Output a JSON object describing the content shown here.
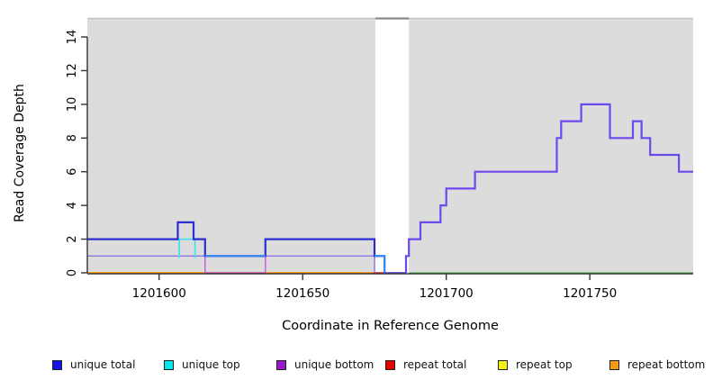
{
  "figure": {
    "title": "",
    "xlabel": "Coordinate in Reference Genome",
    "ylabel": "Read Coverage Depth"
  },
  "chart_data": {
    "type": "line",
    "subtype": "step-coverage-plot",
    "title": "",
    "xlabel": "Coordinate in Reference Genome",
    "ylabel": "Read Coverage Depth",
    "xlim": [
      1201575,
      1201786
    ],
    "ylim": [
      0,
      15.2
    ],
    "x_ticks": [
      "1201600",
      "1201650",
      "1201700",
      "1201750"
    ],
    "x_tick_values": [
      1201600,
      1201650,
      1201700,
      1201750
    ],
    "y_ticks": [
      "0",
      "2",
      "4",
      "6",
      "8",
      "10",
      "12",
      "14"
    ],
    "y_tick_values": [
      0,
      2,
      4,
      6,
      8,
      10,
      12,
      14
    ],
    "grid": false,
    "plot_background": "#ffffff",
    "background_regions": [
      {
        "name": "shaded-left",
        "x0": 1201575,
        "x1": 1201675.3,
        "color": "#dcdcdc",
        "border_top": "#c2c2c2"
      },
      {
        "name": "shaded-right",
        "x0": 1201687,
        "x1": 1201786,
        "color": "#dcdcdc",
        "border_top": "#c2c2c2"
      }
    ],
    "gap_band": {
      "x0": 1201675.3,
      "x1": 1201687,
      "color": "#ffffff",
      "cap_color": "#8a8a8a"
    },
    "series": [
      {
        "name": "repeat bottom baseline",
        "color": "#ff9d1e",
        "width": 2,
        "points": [
          [
            1201575,
            0
          ],
          [
            1201674.5,
            0
          ]
        ]
      },
      {
        "name": "repeat total baseline segment",
        "color": "#e83548",
        "width": 1.8,
        "points": [
          [
            1201674.5,
            0
          ],
          [
            1201679,
            0
          ]
        ]
      },
      {
        "name": "green baseline right region",
        "color": "#63c063",
        "width": 1.6,
        "points": [
          [
            1201687,
            0
          ],
          [
            1201786,
            0
          ]
        ]
      },
      {
        "name": "unique bottom dip",
        "color": "#c55bd2",
        "width": 1.4,
        "points": [
          [
            1201616,
            1
          ],
          [
            1201616,
            0
          ],
          [
            1201637,
            0
          ],
          [
            1201637,
            1
          ]
        ]
      },
      {
        "name": "unique bottom level left",
        "color": "#8f78e6",
        "width": 1.4,
        "points": [
          [
            1201575,
            1
          ],
          [
            1201616,
            1
          ]
        ]
      },
      {
        "name": "unique bottom level mid",
        "color": "#8f78e6",
        "width": 1.4,
        "points": [
          [
            1201637,
            1
          ],
          [
            1201675,
            1
          ],
          [
            1201675,
            0
          ]
        ]
      },
      {
        "name": "gap zero baseline",
        "color": "#7a5ae0",
        "width": 2,
        "points": [
          [
            1201678.5,
            0
          ],
          [
            1201686,
            0
          ]
        ]
      },
      {
        "name": "unique top bump",
        "color": "#49e2ea",
        "width": 1.8,
        "points": [
          [
            1201607,
            0.9
          ],
          [
            1201607,
            2
          ],
          [
            1201612.5,
            2
          ],
          [
            1201612.5,
            0.9
          ]
        ]
      },
      {
        "name": "unique total left",
        "color": "#2d2dd0",
        "width": 2.2,
        "points": [
          [
            1201575,
            2
          ],
          [
            1201606.5,
            2
          ],
          [
            1201606.5,
            3
          ],
          [
            1201612,
            3
          ],
          [
            1201612,
            2
          ],
          [
            1201616,
            2
          ],
          [
            1201616,
            1
          ],
          [
            1201637,
            1
          ],
          [
            1201637,
            2
          ],
          [
            1201675,
            2
          ],
          [
            1201675,
            1
          ],
          [
            1201678.5,
            1
          ],
          [
            1201678.5,
            0
          ]
        ]
      },
      {
        "name": "unique total top overlap mid",
        "color": "#2f8df2",
        "width": 2,
        "points": [
          [
            1201616,
            1
          ],
          [
            1201637,
            1
          ]
        ]
      },
      {
        "name": "unique total top overlap gap",
        "color": "#2f8df2",
        "width": 2,
        "points": [
          [
            1201675,
            1
          ],
          [
            1201678.5,
            1
          ],
          [
            1201678.5,
            0
          ]
        ]
      },
      {
        "name": "unique total right",
        "color": "#6b49ec",
        "width": 2.2,
        "points": [
          [
            1201686,
            0
          ],
          [
            1201686,
            1
          ],
          [
            1201687,
            1
          ],
          [
            1201687,
            2
          ],
          [
            1201691,
            2
          ],
          [
            1201691,
            3
          ],
          [
            1201698,
            3
          ],
          [
            1201698,
            4
          ],
          [
            1201700,
            4
          ],
          [
            1201700,
            5
          ],
          [
            1201710,
            5
          ],
          [
            1201710,
            6
          ],
          [
            1201738.5,
            6
          ],
          [
            1201738.5,
            8
          ],
          [
            1201740,
            8
          ],
          [
            1201740,
            9
          ],
          [
            1201747,
            9
          ],
          [
            1201747,
            10
          ],
          [
            1201757,
            10
          ],
          [
            1201757,
            8
          ],
          [
            1201765,
            8
          ],
          [
            1201765,
            9
          ],
          [
            1201768,
            9
          ],
          [
            1201768,
            8
          ],
          [
            1201771,
            8
          ],
          [
            1201771,
            7
          ],
          [
            1201781,
            7
          ],
          [
            1201781,
            6
          ],
          [
            1201786,
            6
          ]
        ]
      }
    ],
    "legend": {
      "position": "bottom",
      "items": [
        {
          "label": "unique total",
          "color": "#1414e8"
        },
        {
          "label": "unique top",
          "color": "#00e8e8"
        },
        {
          "label": "unique bottom",
          "color": "#9918cc"
        },
        {
          "label": "repeat total",
          "color": "#e80000"
        },
        {
          "label": "repeat top",
          "color": "#f2f20c"
        },
        {
          "label": "repeat bottom",
          "color": "#f29c14"
        }
      ]
    }
  }
}
